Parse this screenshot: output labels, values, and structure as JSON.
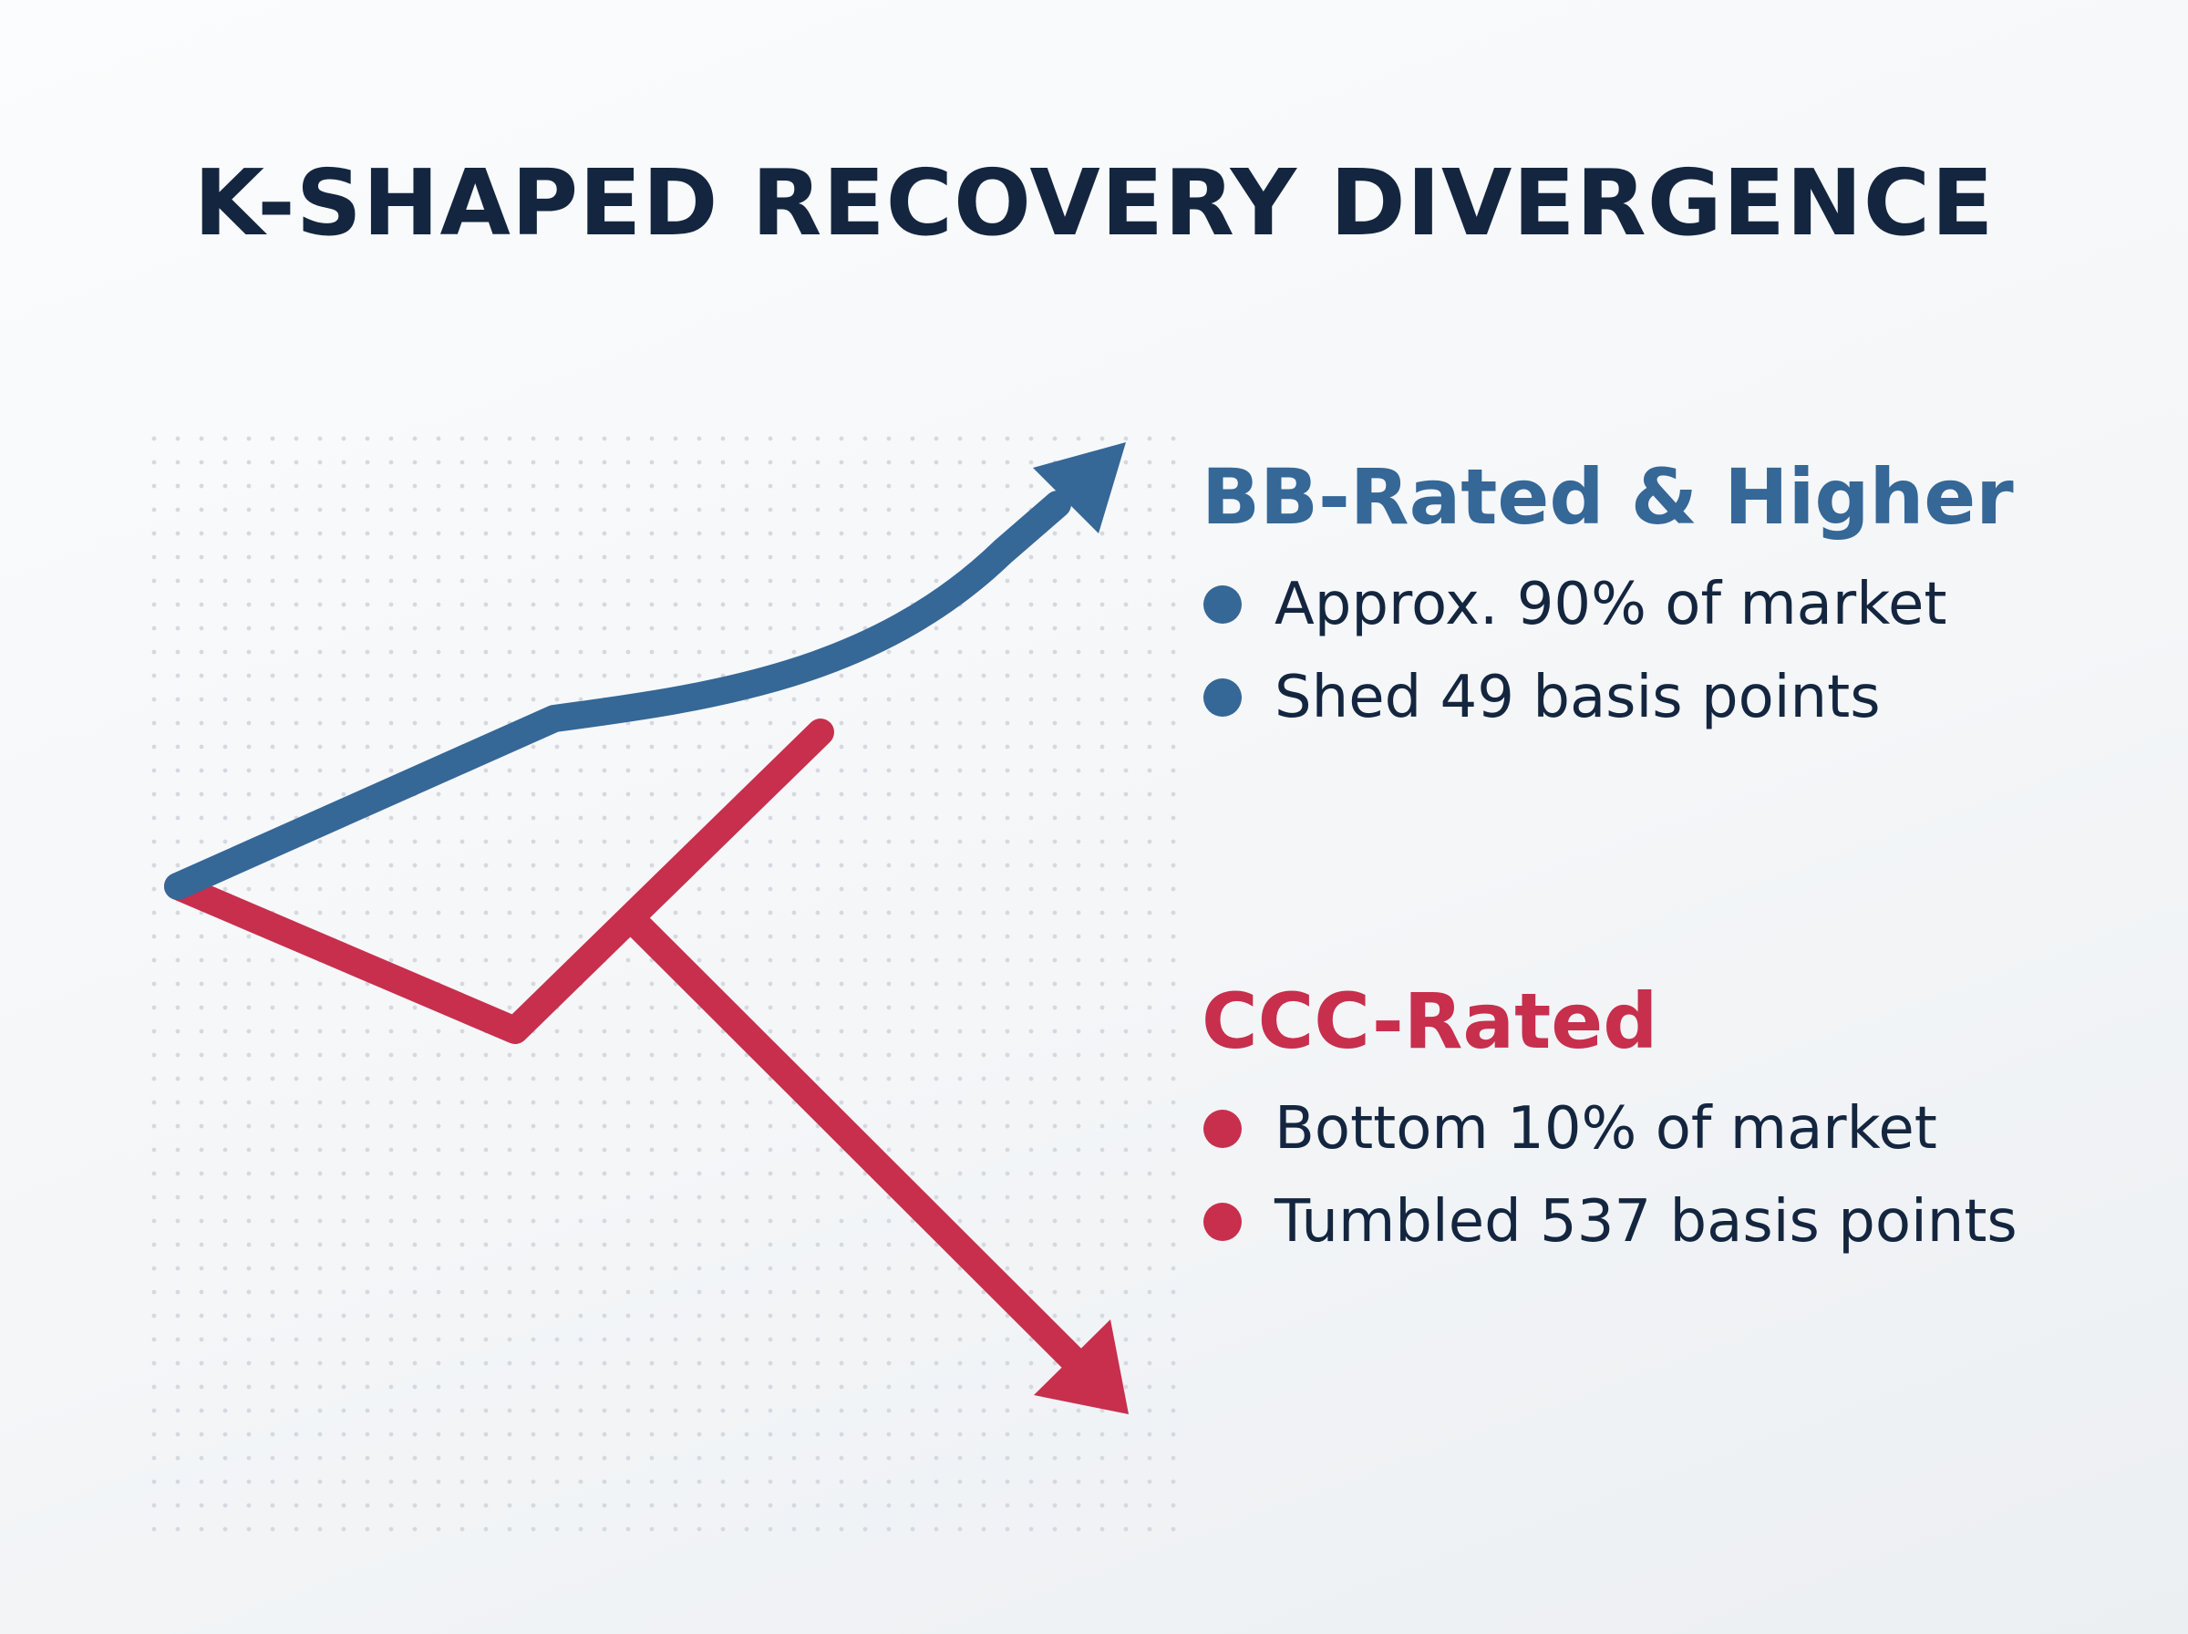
{
  "title": "K-SHAPED RECOVERY DIVERGENCE",
  "colors": {
    "title": "#14263f",
    "text": "#14263f",
    "upper": "#356797",
    "lower": "#c72f4d",
    "grid_dot": "#d5d9df"
  },
  "upper_group": {
    "heading": "BB-Rated & Higher",
    "bullets": [
      "Approx. 90% of market",
      "Shed 49 basis points"
    ]
  },
  "lower_group": {
    "heading": "CCC-Rated",
    "bullets": [
      "Bottom 10% of market",
      "Tumbled 537 basis points"
    ]
  }
}
